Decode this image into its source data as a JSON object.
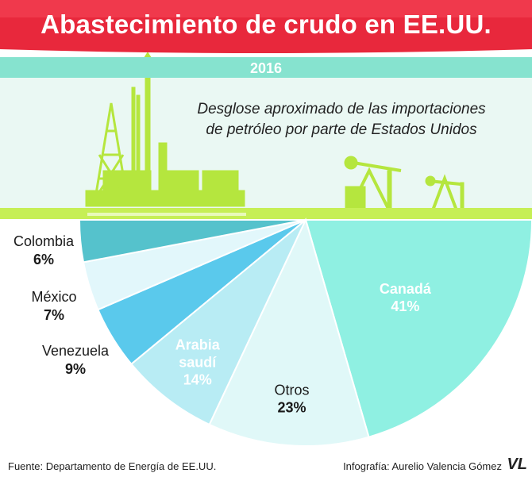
{
  "header": {
    "title": "Abastecimiento de crudo en EE.UU.",
    "year": "2016",
    "subtitle_line1": "Desglose aproximado de las importaciones",
    "subtitle_line2": "de petróleo por parte de Estados Unidos"
  },
  "colors": {
    "banner": "#e8283c",
    "year_bar": "#86e3cf",
    "ground": "#c6ef55",
    "scene_bg": "#eaf8f3",
    "industry": "#b5e63e"
  },
  "chart_data": {
    "type": "pie",
    "subtitle": "Desglose aproximado de las importaciones de petróleo por parte de Estados Unidos",
    "slices": [
      {
        "label": "Canadá",
        "value": 41,
        "value_text": "41%",
        "color": "#8ff0e2"
      },
      {
        "label": "Otros",
        "value": 23,
        "value_text": "23%",
        "color": "#e0f8f8"
      },
      {
        "label": "Arabia saudí",
        "value": 14,
        "value_text": "14%",
        "color": "#b8ecf4"
      },
      {
        "label": "Venezuela",
        "value": 9,
        "value_text": "9%",
        "color": "#5ac9ec"
      },
      {
        "label": "México",
        "value": 7,
        "value_text": "7%",
        "color": "#e2f7fb"
      },
      {
        "label": "Colombia",
        "value": 6,
        "value_text": "6%",
        "color": "#55c2cc"
      }
    ]
  },
  "footer": {
    "source": "Fuente: Departamento de Energía de EE.UU.",
    "credit": "Infografía: Aurelio Valencia Gómez",
    "logo": "VL"
  }
}
